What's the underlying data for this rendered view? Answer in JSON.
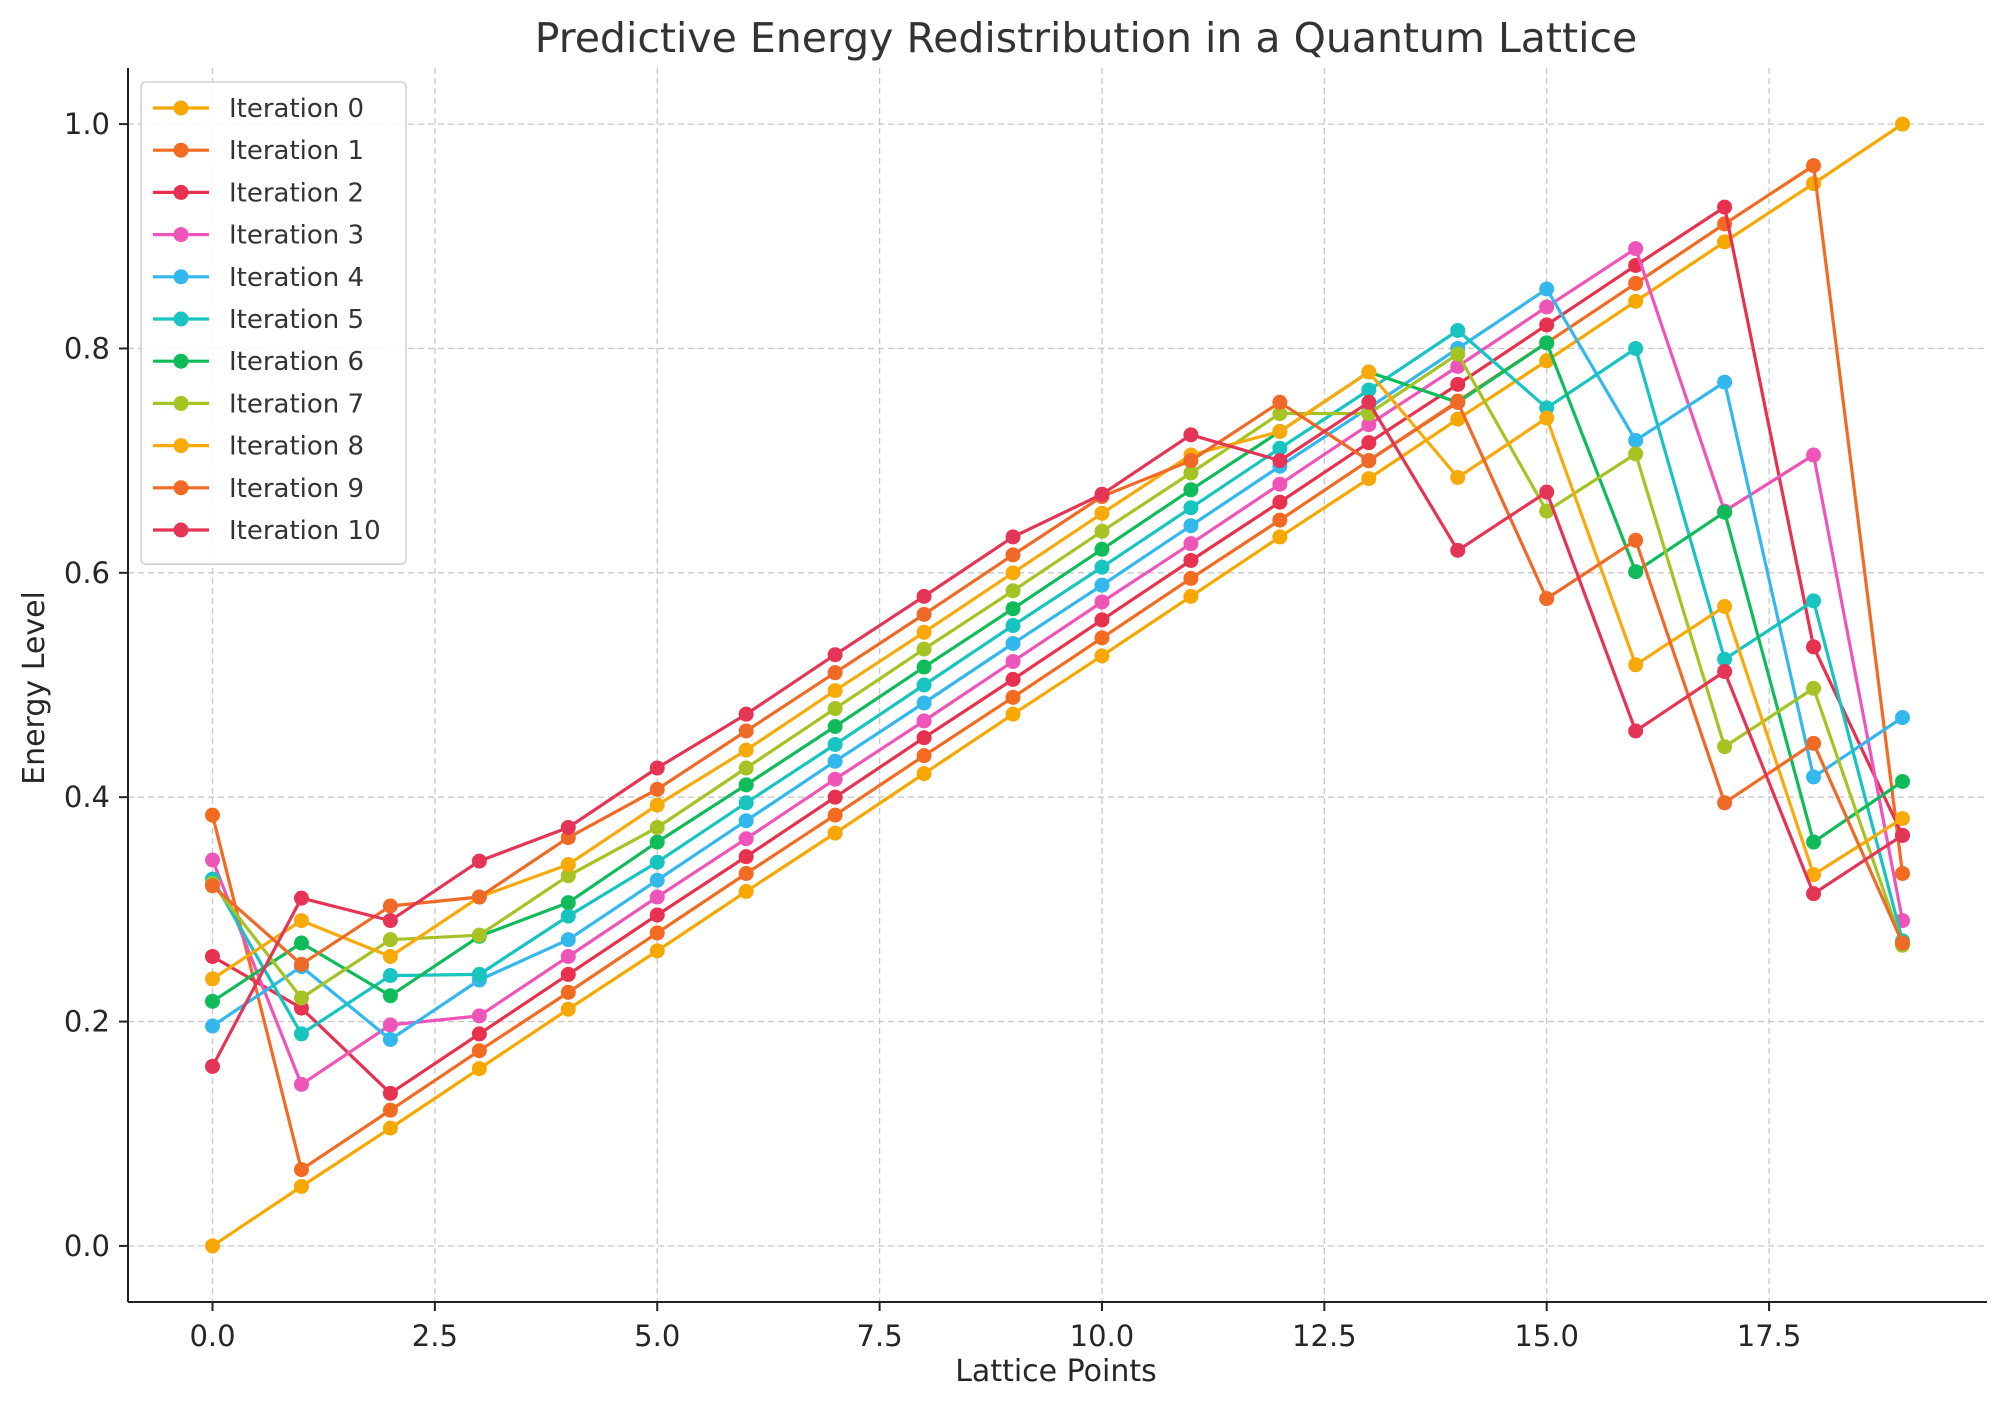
{
  "chart_data": {
    "type": "line",
    "title": "Predictive Energy Redistribution in a Quantum Lattice",
    "xlabel": "Lattice Points",
    "ylabel": "Energy Level",
    "xlim": [
      -0.95,
      19.95
    ],
    "ylim": [
      -0.05,
      1.05
    ],
    "x_ticks": [
      "0.0",
      "2.5",
      "5.0",
      "7.5",
      "10.0",
      "12.5",
      "15.0",
      "17.5"
    ],
    "x_tick_values": [
      0,
      2.5,
      5,
      7.5,
      10,
      12.5,
      15,
      17.5
    ],
    "y_ticks": [
      "0.0",
      "0.2",
      "0.4",
      "0.6",
      "0.8",
      "1.0"
    ],
    "y_tick_values": [
      0,
      0.2,
      0.4,
      0.6,
      0.8,
      1.0
    ],
    "grid": true,
    "legend_position": "top-left",
    "x": [
      0,
      1,
      2,
      3,
      4,
      5,
      6,
      7,
      8,
      9,
      10,
      11,
      12,
      13,
      14,
      15,
      16,
      17,
      18,
      19
    ],
    "series": [
      {
        "name": "Iteration 0",
        "color": "#F7A800",
        "values": [
          0.0,
          0.053,
          0.105,
          0.158,
          0.211,
          0.263,
          0.316,
          0.368,
          0.421,
          0.474,
          0.526,
          0.579,
          0.632,
          0.684,
          0.737,
          0.789,
          0.842,
          0.895,
          0.947,
          1.0
        ]
      },
      {
        "name": "Iteration 1",
        "color": "#F26B21",
        "values": [
          0.384,
          0.068,
          0.121,
          0.174,
          0.226,
          0.279,
          0.332,
          0.384,
          0.437,
          0.489,
          0.542,
          0.595,
          0.647,
          0.7,
          0.753,
          0.805,
          0.858,
          0.911,
          0.963,
          0.332
        ]
      },
      {
        "name": "Iteration 2",
        "color": "#E8304F",
        "values": [
          0.258,
          0.212,
          0.136,
          0.189,
          0.242,
          0.295,
          0.347,
          0.4,
          0.453,
          0.505,
          0.558,
          0.611,
          0.663,
          0.716,
          0.768,
          0.821,
          0.874,
          0.926,
          0.534,
          0.366
        ]
      },
      {
        "name": "Iteration 3",
        "color": "#EF55B8",
        "values": [
          0.344,
          0.144,
          0.197,
          0.205,
          0.258,
          0.311,
          0.363,
          0.416,
          0.468,
          0.521,
          0.574,
          0.626,
          0.679,
          0.732,
          0.784,
          0.837,
          0.889,
          0.655,
          0.705,
          0.29
        ]
      },
      {
        "name": "Iteration 4",
        "color": "#33B8EE",
        "values": [
          0.196,
          0.249,
          0.184,
          0.237,
          0.273,
          0.326,
          0.379,
          0.432,
          0.484,
          0.537,
          0.589,
          0.642,
          0.695,
          0.747,
          0.8,
          0.853,
          0.718,
          0.77,
          0.418,
          0.471
        ]
      },
      {
        "name": "Iteration 5",
        "color": "#17C4C0",
        "values": [
          0.327,
          0.189,
          0.241,
          0.242,
          0.294,
          0.342,
          0.395,
          0.447,
          0.5,
          0.553,
          0.605,
          0.658,
          0.711,
          0.763,
          0.816,
          0.747,
          0.8,
          0.523,
          0.575,
          0.272
        ]
      },
      {
        "name": "Iteration 6",
        "color": "#10BB5A",
        "values": [
          0.218,
          0.27,
          0.223,
          0.276,
          0.306,
          0.36,
          0.411,
          0.463,
          0.516,
          0.568,
          0.621,
          0.674,
          0.726,
          0.779,
          0.752,
          0.805,
          0.601,
          0.654,
          0.36,
          0.414
        ]
      },
      {
        "name": "Iteration 7",
        "color": "#A5C423",
        "values": [
          0.323,
          0.221,
          0.273,
          0.277,
          0.33,
          0.373,
          0.426,
          0.479,
          0.532,
          0.584,
          0.637,
          0.689,
          0.742,
          0.742,
          0.795,
          0.655,
          0.706,
          0.445,
          0.497,
          0.268
        ]
      },
      {
        "name": "Iteration 8",
        "color": "#F9AA0B",
        "values": [
          0.238,
          0.29,
          0.258,
          0.311,
          0.34,
          0.393,
          0.442,
          0.495,
          0.547,
          0.6,
          0.653,
          0.705,
          0.726,
          0.779,
          0.685,
          0.738,
          0.518,
          0.57,
          0.331,
          0.381
        ]
      },
      {
        "name": "Iteration 9",
        "color": "#EE6A26",
        "values": [
          0.321,
          0.251,
          0.303,
          0.311,
          0.364,
          0.407,
          0.459,
          0.511,
          0.563,
          0.616,
          0.668,
          0.7,
          0.752,
          0.7,
          0.752,
          0.577,
          0.629,
          0.395,
          0.448,
          0.27
        ]
      },
      {
        "name": "Iteration 10",
        "color": "#E53556",
        "values": [
          0.16,
          0.31,
          0.29,
          0.343,
          0.373,
          0.426,
          0.474,
          0.527,
          0.579,
          0.632,
          0.67,
          0.723,
          0.7,
          0.752,
          0.62,
          0.672,
          0.459,
          0.512,
          0.314,
          0.366
        ]
      }
    ]
  }
}
